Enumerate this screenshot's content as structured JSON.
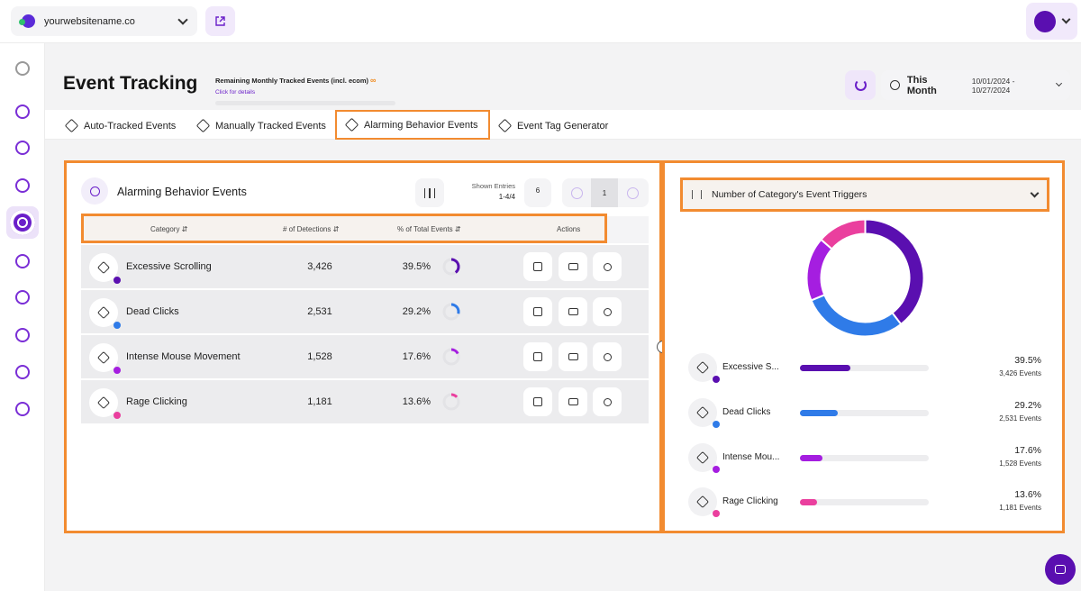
{
  "topbar": {
    "site_name": "yourwebsitename.co"
  },
  "page": {
    "title": "Event Tracking",
    "quota_label": "Remaining Monthly Tracked Events (incl. ecom)",
    "quota_infinity": "∞",
    "quota_link": "Click for details",
    "date_preset": "This Month",
    "date_range": "10/01/2024 - 10/27/2024"
  },
  "tabs": [
    {
      "label": "Auto-Tracked Events"
    },
    {
      "label": "Manually Tracked Events"
    },
    {
      "label": "Alarming Behavior Events",
      "active": true
    },
    {
      "label": "Event Tag Generator"
    }
  ],
  "table": {
    "title": "Alarming Behavior Events",
    "shown_entries_label": "Shown Entries",
    "shown_entries_value": "1-4/4",
    "entries_per_page": "6",
    "current_page": "1",
    "columns": [
      "Category",
      "# of Detections",
      "% of Total Events",
      "Actions"
    ],
    "rows": [
      {
        "category": "Excessive Scrolling",
        "detections": "3,426",
        "percent": "39.5%",
        "share": 0.395,
        "color": "#5a0fb0"
      },
      {
        "category": "Dead Clicks",
        "detections": "2,531",
        "percent": "29.2%",
        "share": 0.292,
        "color": "#2f7be8"
      },
      {
        "category": "Intense Mouse Movement",
        "detections": "1,528",
        "percent": "17.6%",
        "share": 0.176,
        "color": "#a51ee0"
      },
      {
        "category": "Rage Clicking",
        "detections": "1,181",
        "percent": "13.6%",
        "share": 0.136,
        "color": "#ea3f9e"
      }
    ]
  },
  "chart_panel": {
    "dropdown_label": "Number of Category's Event Triggers",
    "legend": [
      {
        "name": "Excessive S...",
        "percent": "39.5%",
        "events": "3,426 Events"
      },
      {
        "name": "Dead Clicks",
        "percent": "29.2%",
        "events": "2,531 Events"
      },
      {
        "name": "Intense Mou...",
        "percent": "17.6%",
        "events": "1,528 Events"
      },
      {
        "name": "Rage Clicking",
        "percent": "13.6%",
        "events": "1,181 Events"
      }
    ]
  },
  "chart_data": {
    "type": "pie",
    "categories": [
      "Excessive Scrolling",
      "Dead Clicks",
      "Intense Mouse Movement",
      "Rage Clicking"
    ],
    "values": [
      3426,
      2531,
      1528,
      1181
    ],
    "percent": [
      39.5,
      29.2,
      17.6,
      13.6
    ],
    "colors": [
      "#5a0fb0",
      "#2f7be8",
      "#a51ee0",
      "#ea3f9e"
    ],
    "title": "Number of Category's Event Triggers",
    "donut": true
  },
  "icons": {
    "site": "globe-icon",
    "external": "external-link-icon",
    "refresh": "refresh-icon",
    "clock": "clock-icon",
    "tag": "tag-icon",
    "filter": "filter-icon",
    "recording": "video-icon",
    "user": "user-icon",
    "chat": "chat-icon"
  },
  "colors": {
    "accent": "#6a1fc9",
    "highlight": "#f28b30"
  }
}
